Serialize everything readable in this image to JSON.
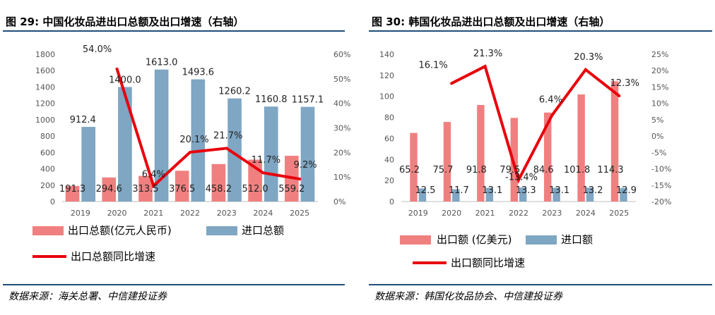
{
  "left": {
    "title": "图 29: 中国化妆品进出口总额及出口增速（右轴）",
    "source": "数据来源：海关总署、中信建投证券",
    "legend": [
      "出口总额(亿元人民币)",
      "进口总额",
      "出口总额同比增速"
    ],
    "colors": {
      "export": "#f08080",
      "import": "#7fa6c3",
      "growth": "#e8000b"
    },
    "chart_data": {
      "type": "bar",
      "categories": [
        "2019",
        "2020",
        "2021",
        "2022",
        "2023",
        "2024",
        "2025"
      ],
      "series": [
        {
          "name": "出口总额(亿元人民币)",
          "type": "bar",
          "axis": "left",
          "values": [
            191.3,
            294.6,
            313.5,
            376.5,
            458.2,
            512.0,
            559.2
          ],
          "labels": [
            "191.3",
            "294.6",
            "313.5",
            "376.5",
            "458.2",
            "512.0",
            "559.2"
          ]
        },
        {
          "name": "进口总额",
          "type": "bar",
          "axis": "left",
          "values": [
            912.4,
            1400.0,
            1613.0,
            1493.6,
            1260.2,
            1160.8,
            1157.1
          ],
          "labels": [
            "912.4",
            "1400.0",
            "1613.0",
            "1493.6",
            "1260.2",
            "1160.8",
            "1157.1"
          ]
        },
        {
          "name": "出口总额同比增速",
          "type": "line",
          "axis": "right",
          "x": [
            "2020",
            "2021",
            "2022",
            "2023",
            "2024",
            "2025"
          ],
          "values": [
            54.0,
            6.4,
            20.1,
            21.7,
            11.7,
            9.2
          ],
          "labels": [
            "54.0%",
            "6.4%",
            "20.1%",
            "21.7%",
            "11.7%",
            "9.2%"
          ]
        }
      ],
      "ylim": [
        0,
        1800
      ],
      "yticks": [
        "0",
        "200",
        "400",
        "600",
        "800",
        "1000",
        "1200",
        "1400",
        "1600",
        "1800"
      ],
      "y2lim": [
        0,
        60
      ],
      "y2ticks": [
        "0%",
        "10%",
        "20%",
        "30%",
        "40%",
        "50%",
        "60%"
      ],
      "legend_position": "bottom"
    }
  },
  "right": {
    "title": "图 30: 韩国化妆品进出口总额及出口增速（右轴）",
    "source": "数据来源：韩国化妆品协会、中信建投证券",
    "legend": [
      "出口额 (亿美元)",
      "进口额",
      "出口额同比增速"
    ],
    "colors": {
      "export": "#f08080",
      "import": "#7fa6c3",
      "growth": "#e8000b"
    },
    "chart_data": {
      "type": "bar",
      "categories": [
        "2019",
        "2020",
        "2021",
        "2022",
        "2023",
        "2024",
        "2025"
      ],
      "series": [
        {
          "name": "出口额 (亿美元)",
          "type": "bar",
          "axis": "left",
          "values": [
            65.2,
            75.7,
            91.8,
            79.5,
            84.6,
            101.8,
            114.3
          ],
          "labels": [
            "65.2",
            "75.7",
            "91.8",
            "79.5",
            "84.6",
            "101.8",
            "114.3"
          ]
        },
        {
          "name": "进口额",
          "type": "bar",
          "axis": "left",
          "values": [
            12.5,
            11.7,
            13.1,
            13.3,
            13.1,
            13.2,
            12.9
          ],
          "labels": [
            "12.5",
            "11.7",
            "13.1",
            "13.3",
            "13.1",
            "13.2",
            "12.9"
          ]
        },
        {
          "name": "出口额同比增速",
          "type": "line",
          "axis": "right",
          "x": [
            "2020",
            "2021",
            "2022",
            "2023",
            "2024",
            "2025"
          ],
          "values": [
            16.1,
            21.3,
            -13.4,
            6.4,
            20.3,
            12.3
          ],
          "labels": [
            "16.1%",
            "21.3%",
            "-13.4%",
            "6.4%",
            "20.3%",
            "12.3%"
          ]
        }
      ],
      "ylim": [
        0,
        140
      ],
      "yticks": [
        "0",
        "20",
        "40",
        "60",
        "80",
        "100",
        "120",
        "140"
      ],
      "y2lim": [
        -20,
        25
      ],
      "y2ticks": [
        "-20%",
        "-15%",
        "-10%",
        "-5%",
        "0%",
        "5%",
        "10%",
        "15%",
        "20%",
        "25%"
      ],
      "legend_position": "bottom"
    }
  }
}
